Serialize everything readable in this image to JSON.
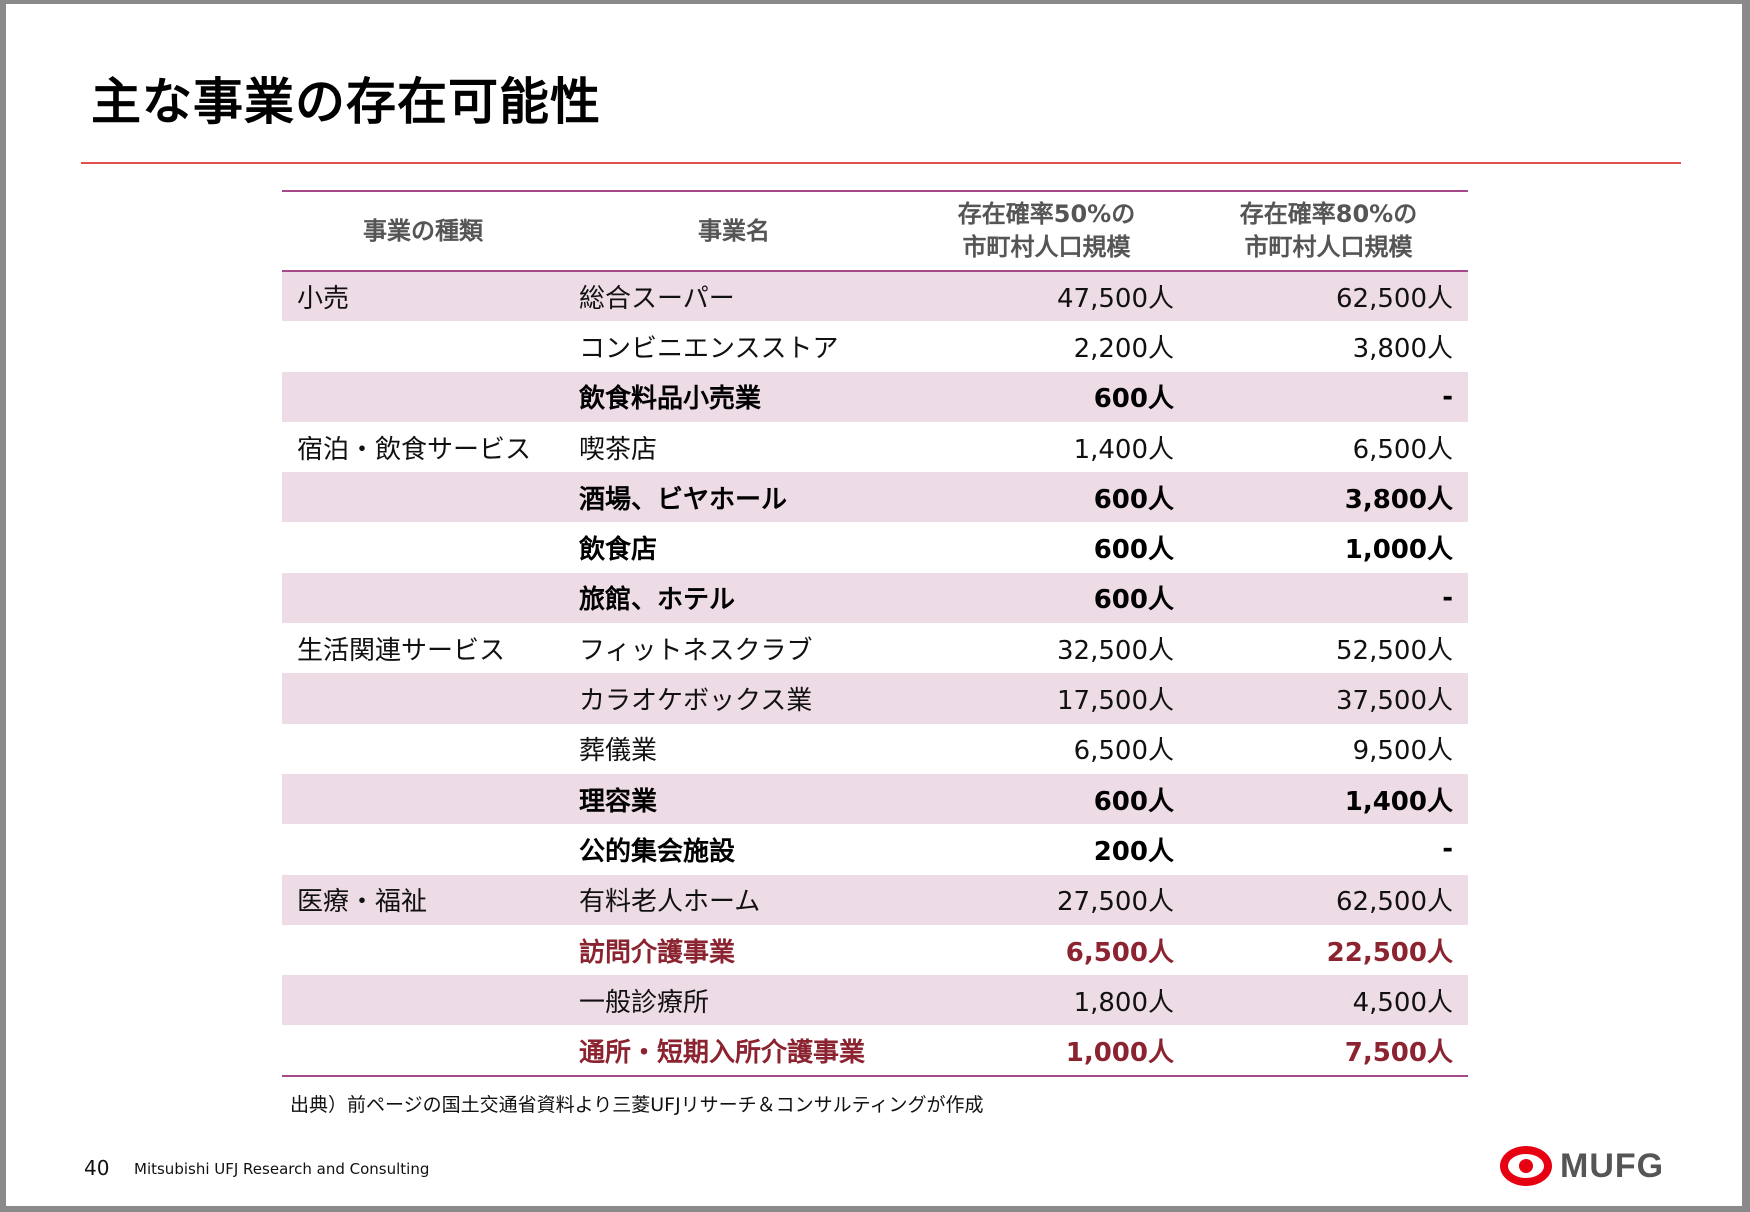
{
  "title": "主な事業の存在可能性",
  "table": {
    "headers": {
      "type": "事業の種類",
      "name": "事業名",
      "p50_line1": "存在確率50%の",
      "p50_line2": "市町村人口規模",
      "p80_line1": "存在確率80%の",
      "p80_line2": "市町村人口規模"
    },
    "rows": [
      {
        "type": "小売",
        "name": "総合スーパー",
        "p50": "47,500人",
        "p80": "62,500人",
        "style": "normal"
      },
      {
        "type": "",
        "name": "コンビニエンスストア",
        "p50": "2,200人",
        "p80": "3,800人",
        "style": "normal"
      },
      {
        "type": "",
        "name": "飲食料品小売業",
        "p50": "600人",
        "p80": "-",
        "style": "bold"
      },
      {
        "type": "宿泊・飲食サービス",
        "name": "喫茶店",
        "p50": "1,400人",
        "p80": "6,500人",
        "style": "normal"
      },
      {
        "type": "",
        "name": "酒場、ビヤホール",
        "p50": "600人",
        "p80": "3,800人",
        "style": "bold"
      },
      {
        "type": "",
        "name": "飲食店",
        "p50": "600人",
        "p80": "1,000人",
        "style": "bold"
      },
      {
        "type": "",
        "name": "旅館、ホテル",
        "p50": "600人",
        "p80": "-",
        "style": "bold"
      },
      {
        "type": "生活関連サービス",
        "name": "フィットネスクラブ",
        "p50": "32,500人",
        "p80": "52,500人",
        "style": "normal"
      },
      {
        "type": "",
        "name": "カラオケボックス業",
        "p50": "17,500人",
        "p80": "37,500人",
        "style": "normal"
      },
      {
        "type": "",
        "name": "葬儀業",
        "p50": "6,500人",
        "p80": "9,500人",
        "style": "normal"
      },
      {
        "type": "",
        "name": "理容業",
        "p50": "600人",
        "p80": "1,400人",
        "style": "bold"
      },
      {
        "type": "",
        "name": "公的集会施設",
        "p50": "200人",
        "p80": "-",
        "style": "bold"
      },
      {
        "type": "医療・福祉",
        "name": "有料老人ホーム",
        "p50": "27,500人",
        "p80": "62,500人",
        "style": "normal"
      },
      {
        "type": "",
        "name": "訪問介護事業",
        "p50": "6,500人",
        "p80": "22,500人",
        "style": "red"
      },
      {
        "type": "",
        "name": "一般診療所",
        "p50": "1,800人",
        "p80": "4,500人",
        "style": "normal"
      },
      {
        "type": "",
        "name": "通所・短期入所介護事業",
        "p50": "1,000人",
        "p80": "7,500人",
        "style": "red"
      }
    ]
  },
  "source_note": "出典）前ページの国土交通省資料より三菱UFJリサーチ＆コンサルティングが作成",
  "footer": {
    "page_number": "40",
    "company": "Mitsubishi UFJ Research and Consulting",
    "logo_text": "MUFG"
  },
  "colors": {
    "accent_red": "#e60012",
    "highlight_text": "#8b2430",
    "row_shade": "#eddbe6",
    "table_rule": "#a6498a"
  }
}
